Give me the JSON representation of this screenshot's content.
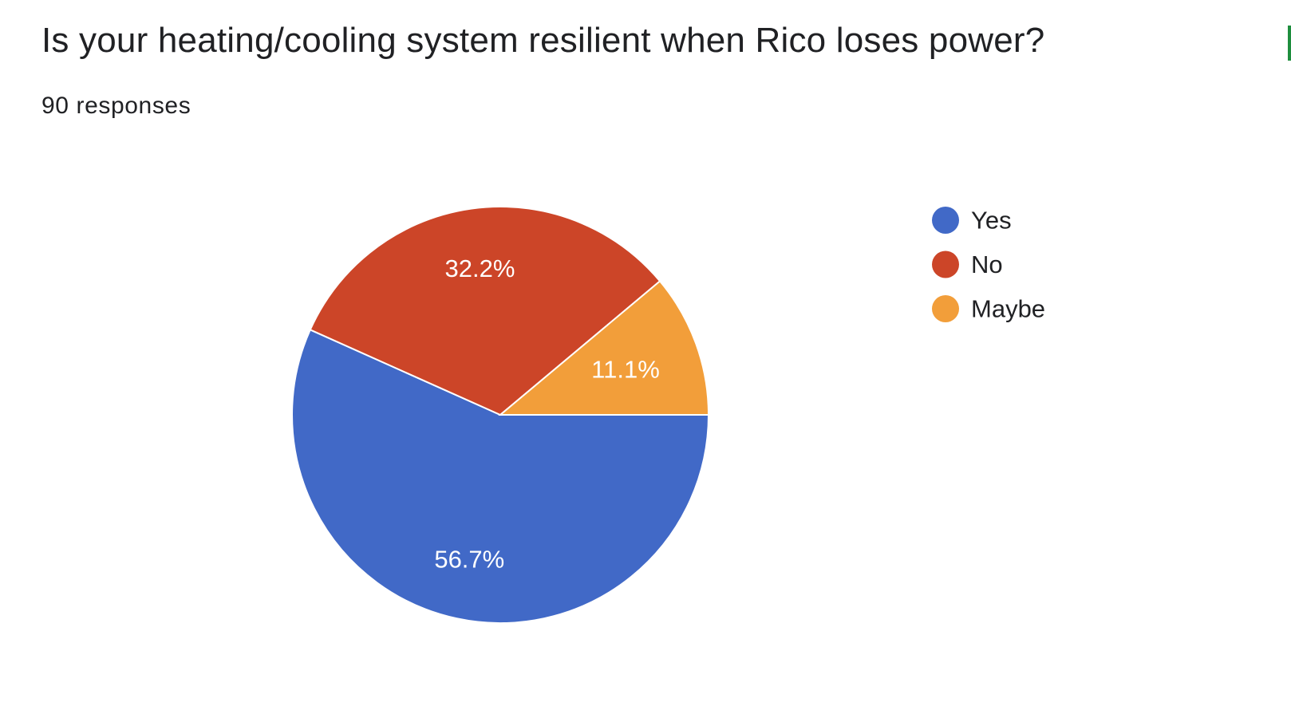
{
  "header": {
    "question": "Is your heating/cooling system resilient when Rico loses power?",
    "responses": "90 responses"
  },
  "colors": {
    "yes": "#4169c7",
    "no": "#cc4528",
    "maybe": "#f29e3a",
    "edge_mark": "#1e8e3e"
  },
  "chart_data": {
    "type": "pie",
    "title": "Is your heating/cooling system resilient when Rico loses power?",
    "subtitle": "90 responses",
    "legend_position": "right",
    "slices": [
      {
        "label": "Yes",
        "value": 56.7,
        "display": "56.7%",
        "color": "#4169c7"
      },
      {
        "label": "No",
        "value": 32.2,
        "display": "32.2%",
        "color": "#cc4528"
      },
      {
        "label": "Maybe",
        "value": 11.1,
        "display": "11.1%",
        "color": "#f29e3a"
      }
    ]
  }
}
